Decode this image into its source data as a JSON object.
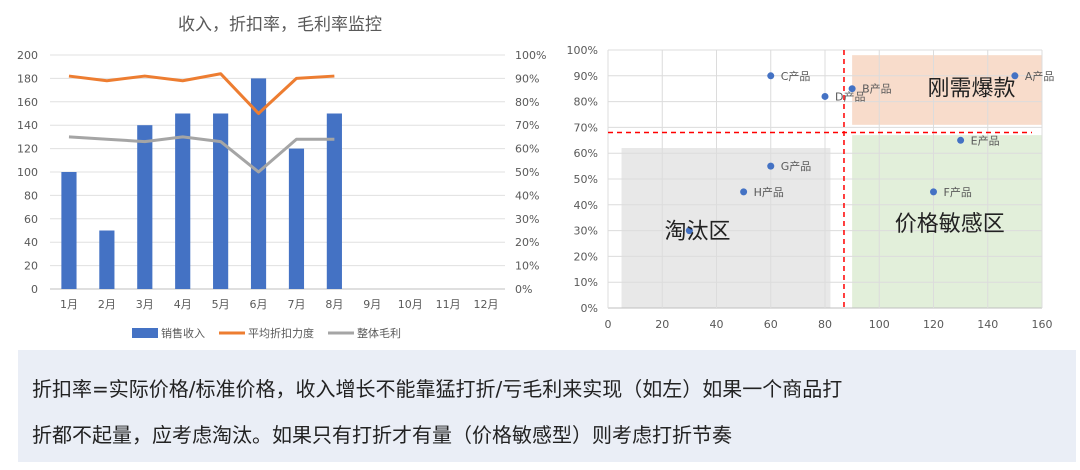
{
  "chart_data": [
    {
      "type": "bar+line",
      "title": "收入，折扣率，毛利率监控",
      "categories": [
        "1月",
        "2月",
        "3月",
        "4月",
        "5月",
        "6月",
        "7月",
        "8月",
        "9月",
        "10月",
        "11月",
        "12月"
      ],
      "series": [
        {
          "name": "销售收入",
          "type": "bar",
          "axis": "left",
          "color": "#4472c4",
          "values": [
            100,
            50,
            140,
            150,
            150,
            180,
            120,
            150,
            null,
            null,
            null,
            null
          ]
        },
        {
          "name": "平均折扣力度",
          "type": "line",
          "axis": "right",
          "color": "#ed7d31",
          "values": [
            0.91,
            0.89,
            0.91,
            0.89,
            0.92,
            0.75,
            0.9,
            0.91,
            null,
            null,
            null,
            null
          ]
        },
        {
          "name": "整体毛利",
          "type": "line",
          "axis": "right",
          "color": "#a5a5a5",
          "values": [
            0.65,
            0.64,
            0.63,
            0.65,
            0.63,
            0.5,
            0.64,
            0.64,
            null,
            null,
            null,
            null
          ]
        }
      ],
      "y_left": {
        "min": 0,
        "max": 200,
        "step": 20,
        "ticks": [
          "0",
          "20",
          "40",
          "60",
          "80",
          "100",
          "120",
          "140",
          "160",
          "180",
          "200"
        ]
      },
      "y_right": {
        "min": 0,
        "max": 1,
        "step": 0.1,
        "ticks": [
          "0%",
          "10%",
          "20%",
          "30%",
          "40%",
          "50%",
          "60%",
          "70%",
          "80%",
          "90%",
          "100%"
        ]
      },
      "grid": true,
      "legend": "bottom"
    },
    {
      "type": "scatter",
      "xlim": [
        0,
        160
      ],
      "ylim": [
        0,
        1
      ],
      "x_ticks": [
        "0",
        "20",
        "40",
        "60",
        "80",
        "100",
        "120",
        "140",
        "160"
      ],
      "y_ticks": [
        "0%",
        "10%",
        "20%",
        "30%",
        "40%",
        "50%",
        "60%",
        "70%",
        "80%",
        "90%",
        "100%"
      ],
      "color": "#4472c4",
      "points": [
        {
          "label": "A产品",
          "x": 150,
          "y": 0.9
        },
        {
          "label": "B产品",
          "x": 90,
          "y": 0.85
        },
        {
          "label": "C产品",
          "x": 60,
          "y": 0.9
        },
        {
          "label": "D产品",
          "x": 80,
          "y": 0.82
        },
        {
          "label": "E产品",
          "x": 130,
          "y": 0.65
        },
        {
          "label": "F产品",
          "x": 120,
          "y": 0.45
        },
        {
          "label": "G产品",
          "x": 60,
          "y": 0.55
        },
        {
          "label": "H产品",
          "x": 50,
          "y": 0.45
        },
        {
          "label": "",
          "x": 30,
          "y": 0.3
        }
      ],
      "reference_lines": {
        "x": 87,
        "y": 0.68,
        "color": "#ff0000",
        "style": "dashed"
      },
      "quadrants": [
        {
          "label": "刚需爆款",
          "x_range": [
            90,
            160
          ],
          "y_range": [
            0.71,
            0.98
          ],
          "color": "#f8dccb"
        },
        {
          "label": "价格敏感区",
          "x_range": [
            90,
            160
          ],
          "y_range": [
            0,
            0.67
          ],
          "color": "#e2efda"
        },
        {
          "label": "淘汰区",
          "x_range": [
            5,
            82
          ],
          "y_range": [
            0,
            0.62
          ],
          "color": "#e8e8e8"
        }
      ],
      "grid": true
    }
  ],
  "note": {
    "line1": "折扣率=实际价格/标准价格，收入增长不能靠猛打折/亏毛利来实现（如左）如果一个商品打",
    "line2": "折都不起量，应考虑淘汰。如果只有打折才有量（价格敏感型）则考虑打折节奏"
  }
}
